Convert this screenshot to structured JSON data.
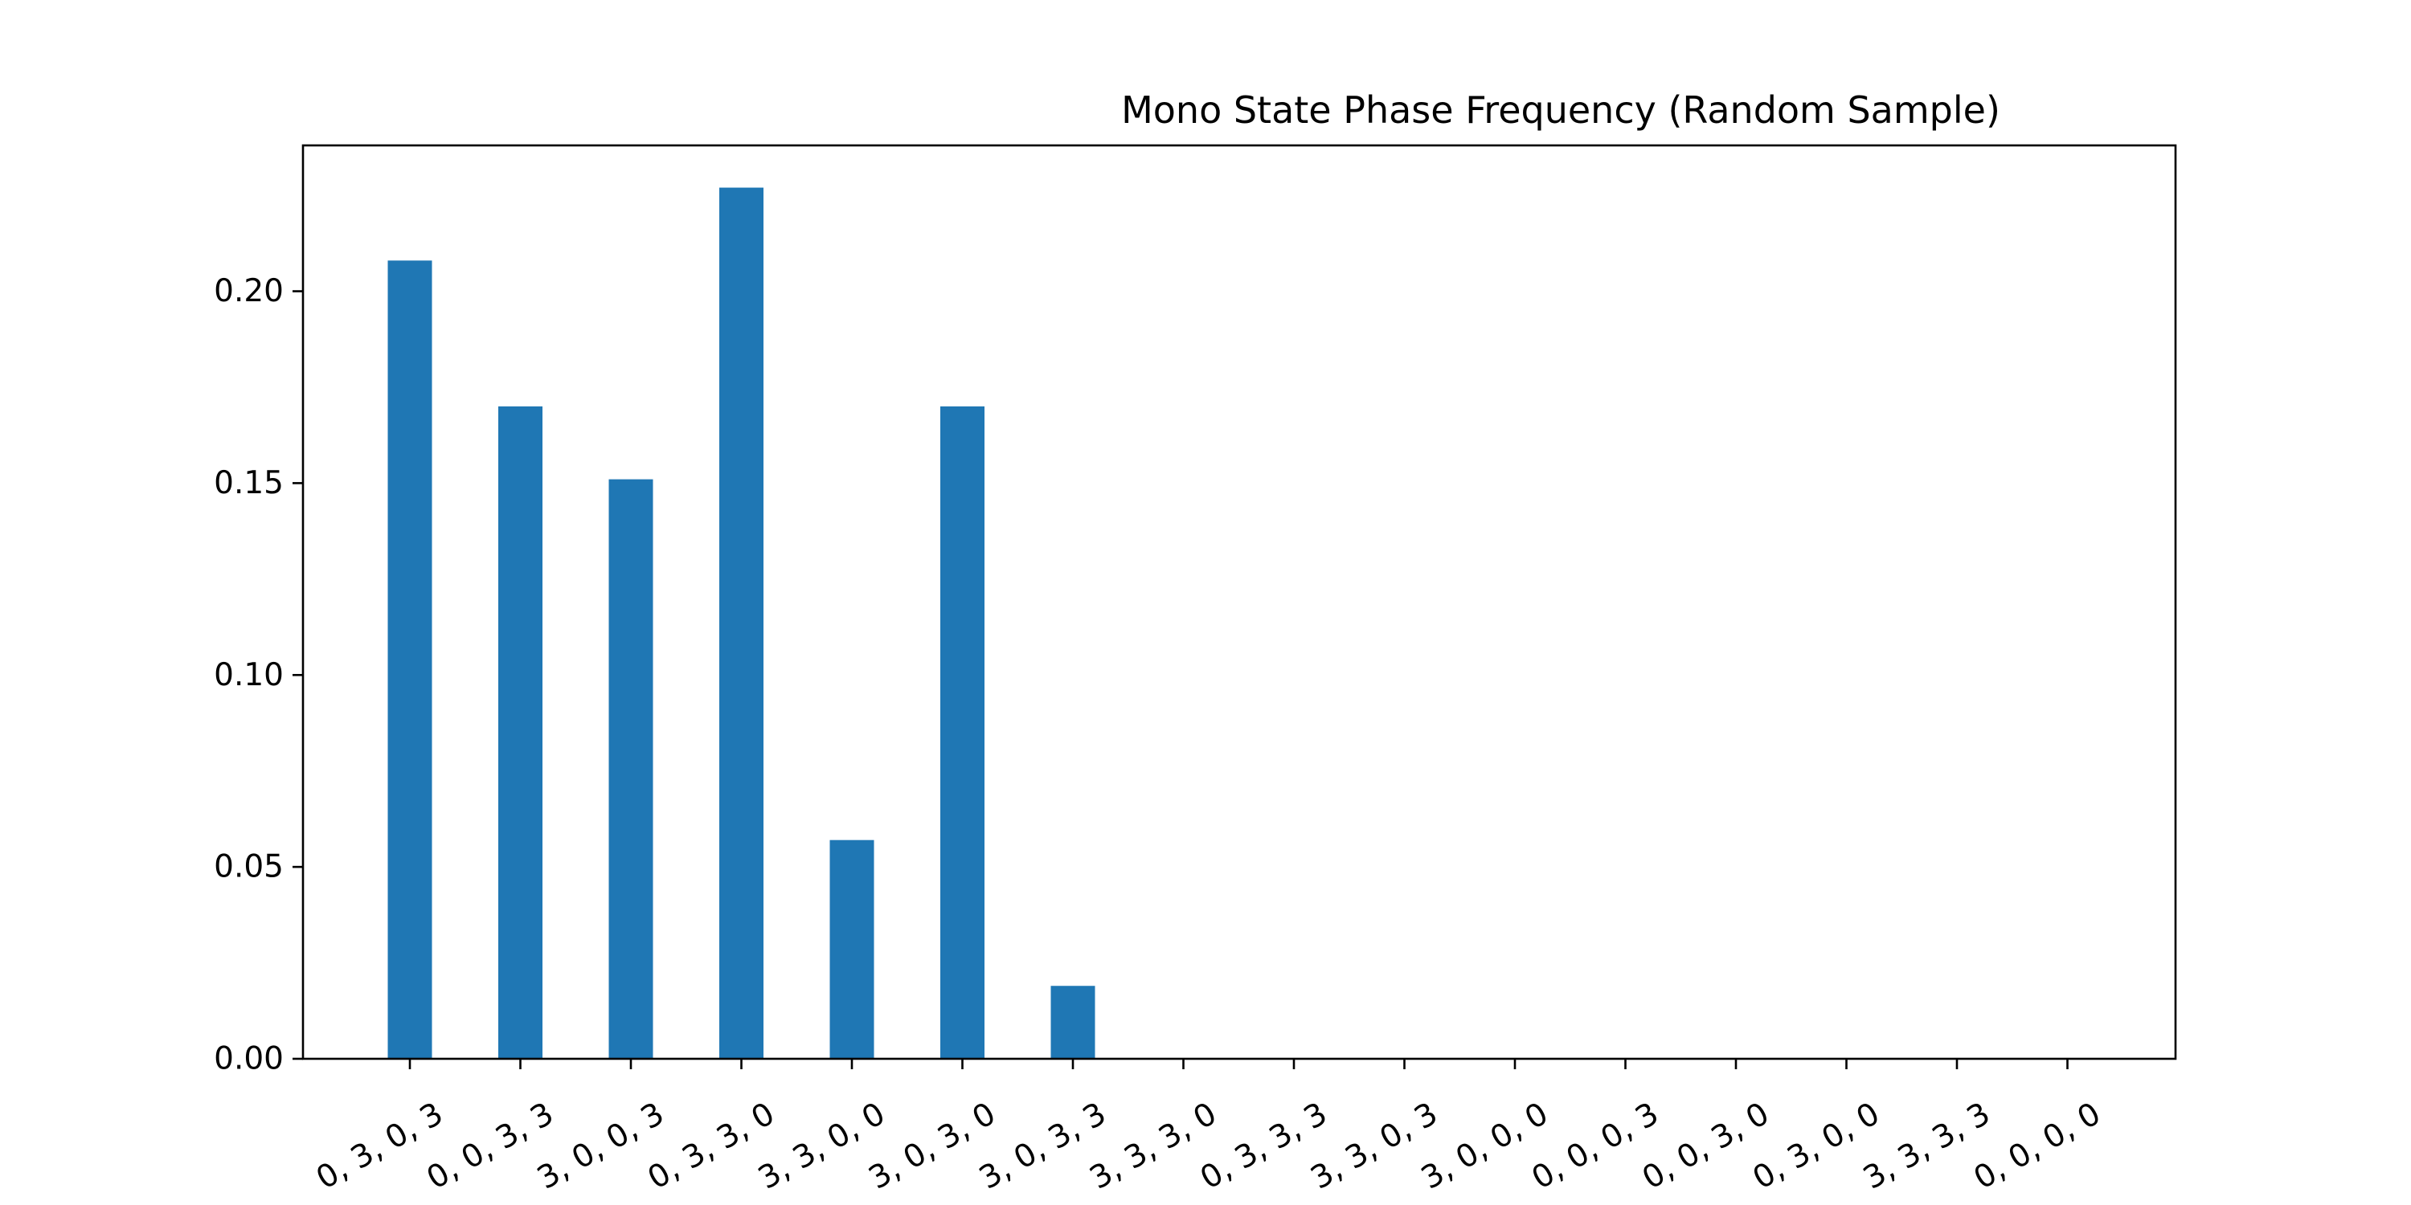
{
  "chart_data": {
    "type": "bar",
    "title": "Mono State Phase Frequency (Random Sample)",
    "xlabel": "",
    "ylabel": "",
    "categories": [
      "0, 3, 0, 3",
      "0, 0, 3, 3",
      "3, 0, 0, 3",
      "0, 3, 3, 0",
      "3, 3, 0, 0",
      "3, 0, 3, 0",
      "3, 0, 3, 3",
      "3, 3, 3, 0",
      "0, 3, 3, 3",
      "3, 3, 0, 3",
      "3, 0, 0, 0",
      "0, 0, 0, 3",
      "0, 0, 3, 0",
      "0, 3, 0, 0",
      "3, 3, 3, 3",
      "0, 0, 0, 0"
    ],
    "values": [
      0.208,
      0.17,
      0.151,
      0.227,
      0.057,
      0.17,
      0.019,
      0,
      0,
      0,
      0,
      0,
      0,
      0,
      0,
      0
    ],
    "ylim": [
      0,
      0.238
    ],
    "yticks": [
      0.0,
      0.05,
      0.1,
      0.15,
      0.2
    ],
    "ytick_labels": [
      "0.00",
      "0.05",
      "0.10",
      "0.15",
      "0.20"
    ],
    "bar_color": "#1f77b4",
    "grid": false,
    "legend": "none"
  }
}
